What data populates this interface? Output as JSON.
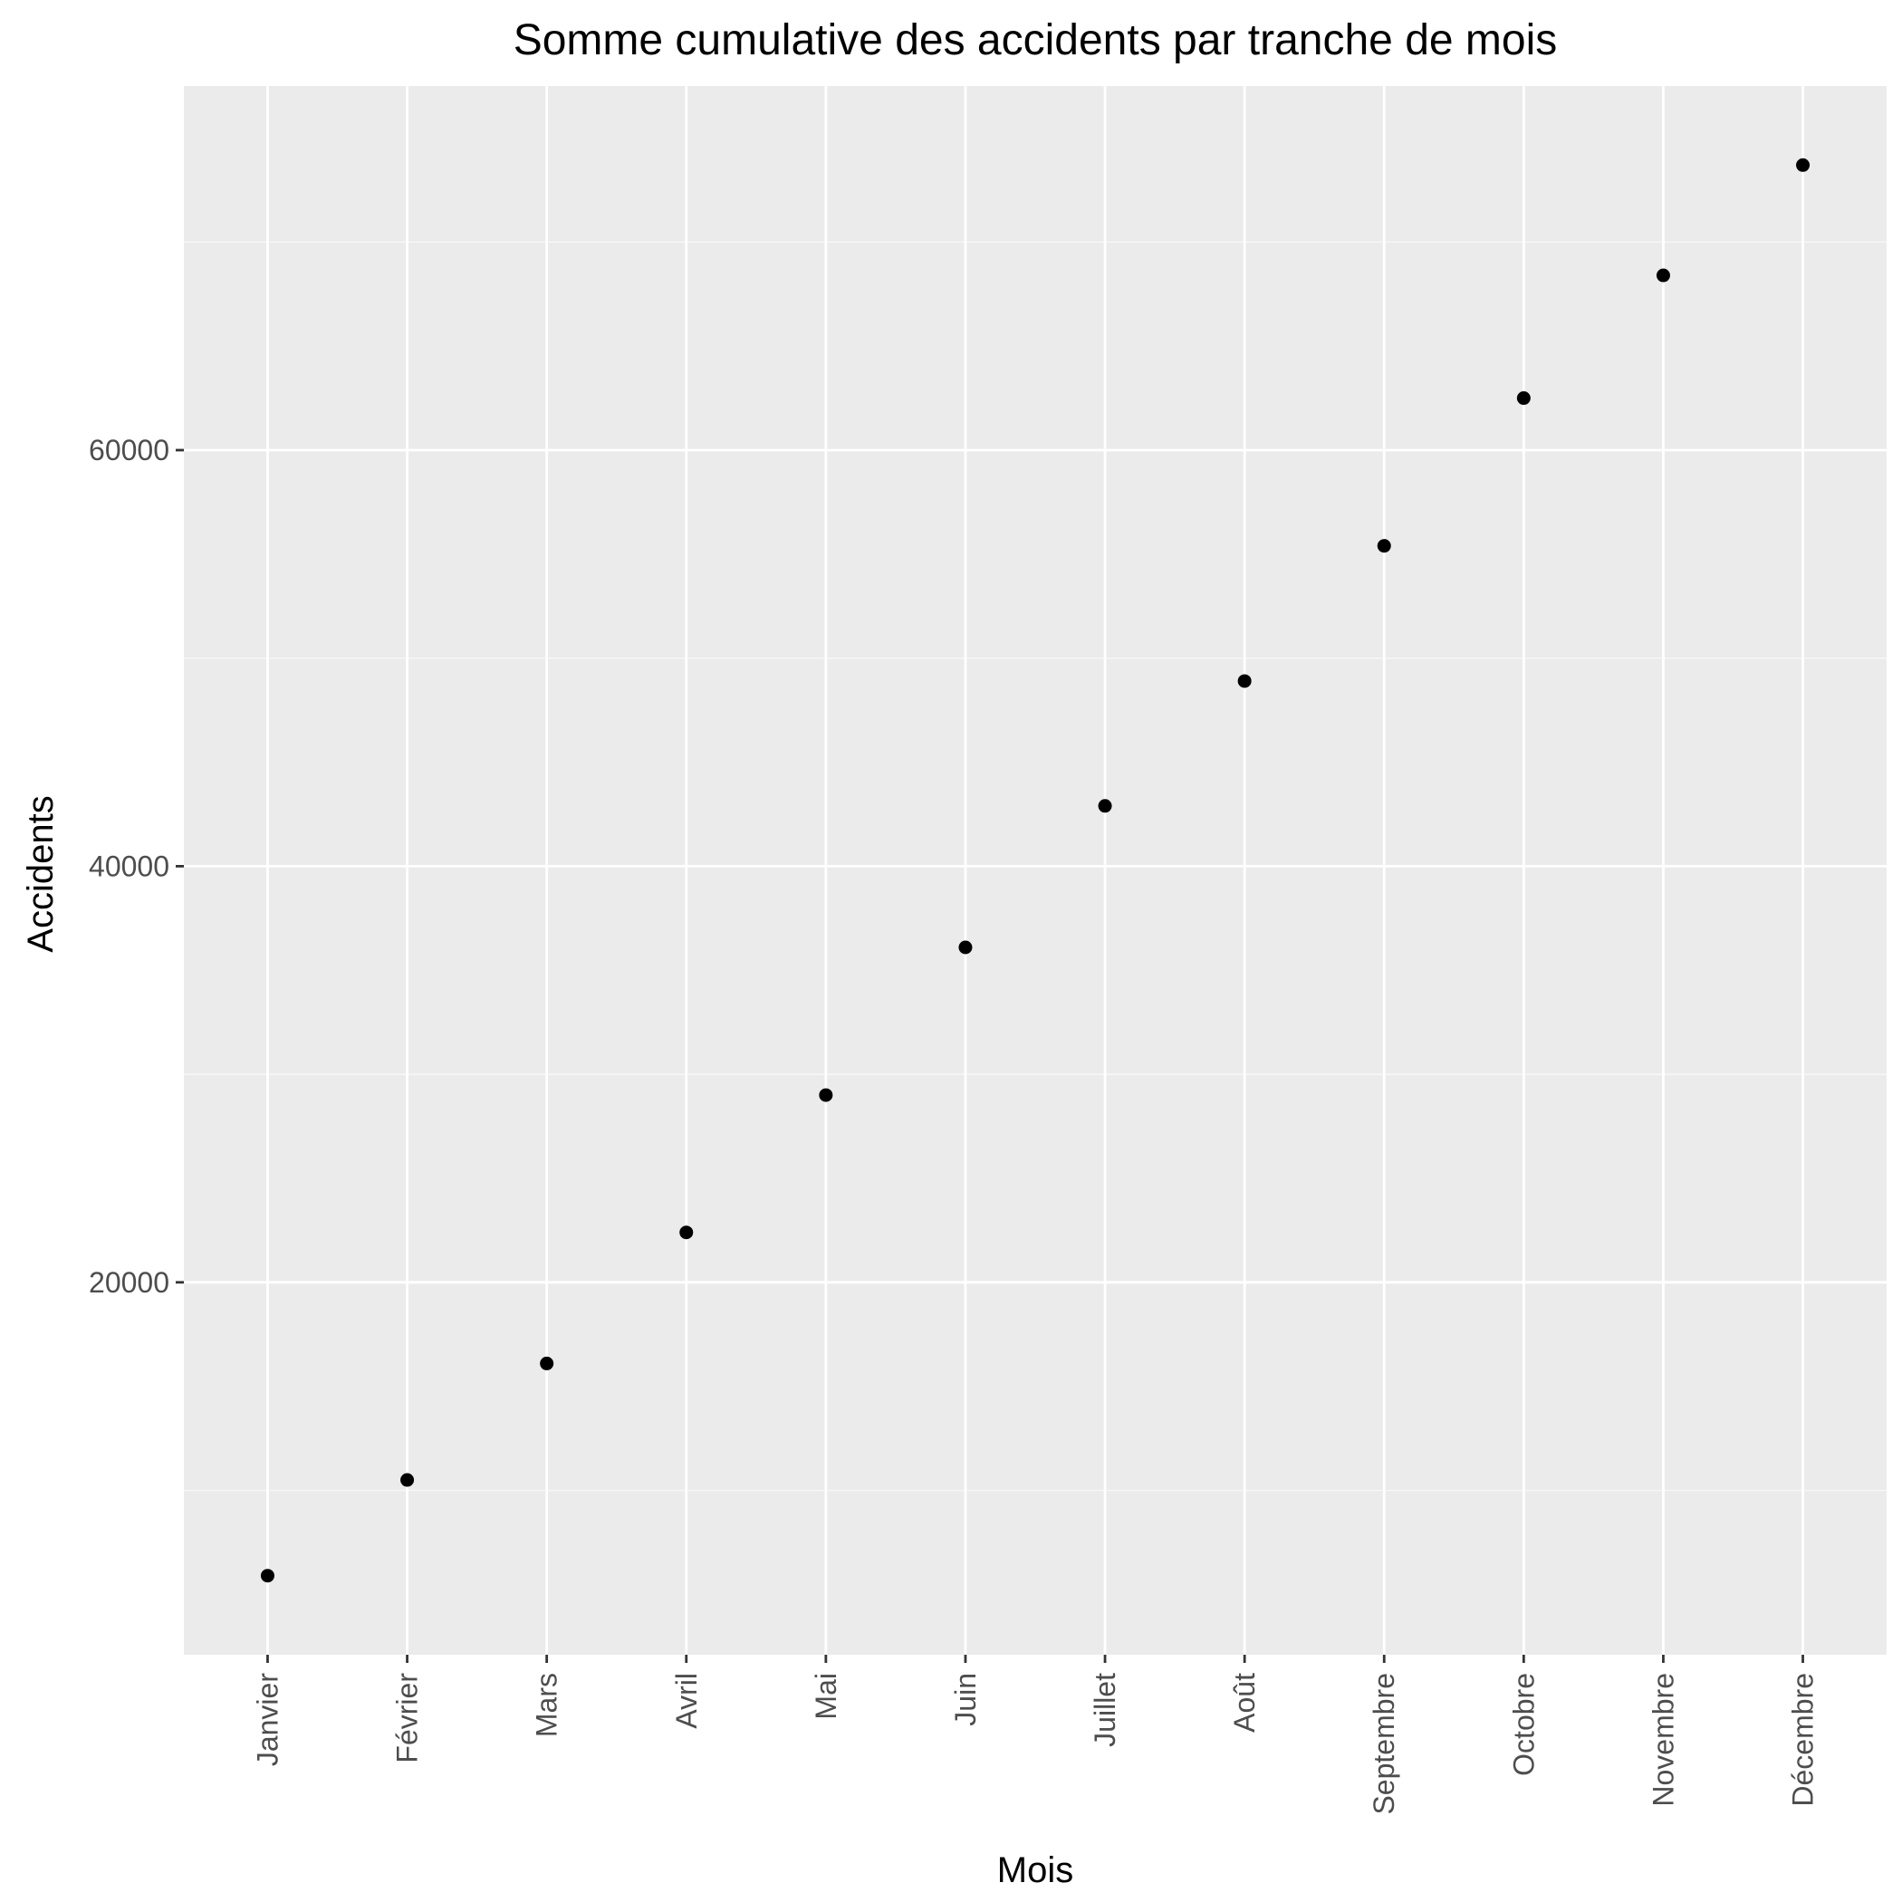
{
  "chart_data": {
    "type": "scatter",
    "title": "Somme cumulative des accidents par tranche de mois",
    "xlabel": "Mois",
    "ylabel": "Accidents",
    "categories": [
      "Janvier",
      "Février",
      "Mars",
      "Avril",
      "Mai",
      "Juin",
      "Juillet",
      "Août",
      "Septembre",
      "Octobre",
      "Novembre",
      "Décembre"
    ],
    "values": [
      5900,
      10500,
      16100,
      22400,
      29000,
      36100,
      42900,
      48900,
      55400,
      62500,
      68400,
      73700
    ],
    "ylim": [
      2100,
      77500
    ],
    "y_ticks": [
      20000,
      40000,
      60000
    ],
    "y_tick_labels": [
      "20000",
      "40000",
      "60000"
    ],
    "grid": true,
    "legend": "none",
    "colors": {
      "panel_background": "#ebebeb",
      "grid_major": "#ffffff",
      "grid_minor": "#f7f7f7",
      "point": "#000000",
      "tick_label": "#4d4d4d",
      "tick_mark": "#333333"
    }
  }
}
